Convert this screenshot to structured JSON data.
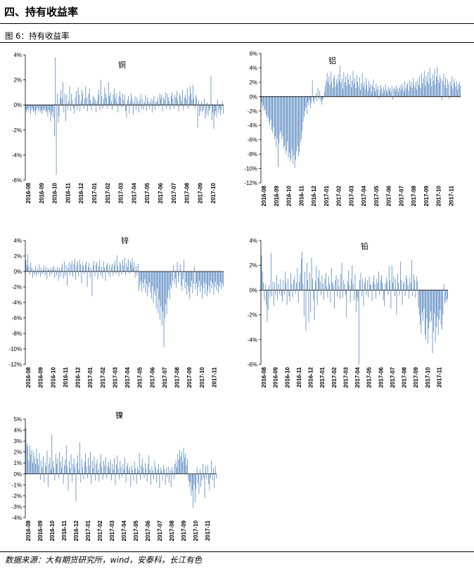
{
  "heading": "四、持有收益率",
  "figure_label": "图 6：持有收益率",
  "source": "数据来源：大有期货研究所，wind，安泰科，长江有色",
  "chart_data": [
    {
      "type": "bar",
      "title": "铜",
      "ylim": [
        -6,
        4
      ],
      "yticks": [
        -6,
        -4,
        -2,
        0,
        2,
        4
      ],
      "ytick_labels": [
        "-6%",
        "-4%",
        "-2%",
        "0%",
        "2%",
        "4%"
      ],
      "xtick_labels": [
        "2016-08",
        "2016-09",
        "2016-10",
        "2016-11",
        "2016-12",
        "2017-01",
        "2017-02",
        "2017-03",
        "2017-04",
        "2017-05",
        "2017-06",
        "2017-07",
        "2017-08",
        "2017-09",
        "2017-10"
      ],
      "color": "#4a7ebb",
      "values": [
        -0.4,
        -0.6,
        -0.3,
        -0.5,
        -0.2,
        -0.7,
        -0.4,
        -0.3,
        -0.6,
        -0.5,
        -0.8,
        -0.4,
        -0.2,
        -0.5,
        -0.3,
        -0.6,
        -0.4,
        -0.7,
        -0.5,
        -0.3,
        -0.4,
        -0.6,
        -0.5,
        -0.9,
        -0.4,
        -0.6,
        -1.3,
        -0.8,
        -0.5,
        -1.0,
        -2.5,
        3.8,
        -5.6,
        0.9,
        -1.4,
        -0.9,
        0.6,
        1.2,
        0.5,
        1.8,
        -0.6,
        0.9,
        -1.3,
        0.8,
        -0.4,
        0.3,
        1.5,
        -0.5,
        0.9,
        0.4,
        -0.3,
        -0.7,
        0.6,
        1.1,
        -0.4,
        1.4,
        0.8,
        -0.5,
        0.3,
        1.2,
        0.9,
        -0.3,
        0.5,
        1.5,
        0.6,
        -0.5,
        0.9,
        1.3,
        0.4,
        -0.4,
        0.2,
        0.7,
        0.6,
        0.4,
        -0.6,
        0.3,
        0.8,
        1.2,
        -0.4,
        2.0,
        0.7,
        -0.3,
        0.5,
        1.4,
        0.9,
        0.6,
        -0.3,
        1.8,
        0.7,
        1.0,
        0.3,
        -0.4,
        0.8,
        1.3,
        0.5,
        0.9,
        0.2,
        -0.6,
        0.7,
        1.1,
        0.6,
        -0.2,
        0.9,
        0.4,
        0.8,
        -0.5,
        -1.0,
        0.4,
        0.7,
        -0.7,
        0.3,
        0.9,
        0.5,
        -0.8,
        0.2,
        0.7,
        -0.4,
        0.6,
        0.3,
        -0.6,
        0.4,
        0.9,
        -0.3,
        0.5,
        -0.4,
        0.2,
        0.8,
        -0.5,
        0.6,
        0.3,
        -0.3,
        0.2,
        0.5,
        -0.6,
        0.4,
        0.7,
        -0.4,
        0.2,
        0.3,
        0.6,
        -0.2,
        0.9,
        0.5,
        0.8,
        -0.5,
        0.6,
        0.4,
        1.0,
        -0.3,
        0.9,
        0.6,
        0.3,
        -0.4,
        0.7,
        1.0,
        0.5,
        -0.3,
        0.8,
        0.6,
        1.1,
        0.4,
        -0.5,
        0.9,
        0.7,
        0.3,
        1.2,
        -0.4,
        0.6,
        0.8,
        0.5,
        1.3,
        -0.3,
        0.7,
        1.5,
        0.9,
        0.4,
        1.6,
        0.5,
        -0.3,
        0.8,
        0.6,
        -1.8,
        0.4,
        -0.9,
        -0.5,
        0.3,
        -0.6,
        -0.4,
        0.5,
        -1.1,
        -0.7,
        0.2,
        -0.9,
        -0.5,
        -0.3,
        2.3,
        -1.2,
        -0.6,
        -1.9,
        -0.8,
        -0.5,
        -1.0,
        0.4,
        -0.6,
        -0.3,
        -0.8,
        -0.4,
        0.3,
        -0.7
      ]
    },
    {
      "type": "bar",
      "title": "铝",
      "ylim": [
        -12,
        6
      ],
      "yticks": [
        -12,
        -10,
        -8,
        -6,
        -4,
        -2,
        0,
        2,
        4,
        6
      ],
      "ytick_labels": [
        "-12%",
        "-10%",
        "-8%",
        "-6%",
        "-4%",
        "-2%",
        "0%",
        "2%",
        "4%",
        "6%"
      ],
      "xtick_labels": [
        "2016-08",
        "2016-09",
        "2016-10",
        "2016-11",
        "2016-12",
        "2017-01",
        "2017-02",
        "2017-03",
        "2017-04",
        "2017-05",
        "2017-06",
        "2017-07",
        "2017-08",
        "2017-09",
        "2017-10",
        "2017-11"
      ],
      "color": "#4a7ebb",
      "values": [
        -0.8,
        -1.5,
        -1.2,
        -2.0,
        -1.8,
        -2.5,
        -3.0,
        -2.8,
        -3.5,
        -4.0,
        -3.2,
        -4.6,
        -5.0,
        -4.2,
        -6.0,
        -5.5,
        -7.0,
        -5.8,
        -9.8,
        -6.5,
        -5.2,
        -4.8,
        -6.0,
        -5.5,
        -7.2,
        -6.8,
        -8.0,
        -7.5,
        -6.2,
        -8.5,
        -7.8,
        -9.0,
        -8.6,
        -7.4,
        -9.4,
        -8.2,
        -9.9,
        -8.8,
        -7.6,
        -6.9,
        -8.3,
        -7.7,
        -6.4,
        -5.9,
        -4.8,
        -3.5,
        -2.8,
        -2.0,
        -1.5,
        -2.4,
        -0.8,
        -1.2,
        -0.5,
        -1.6,
        -0.9,
        2.3,
        -0.6,
        -1.0,
        -0.3,
        0.5,
        -0.7,
        1.2,
        -0.4,
        0.8,
        -0.6,
        -1.1,
        -0.5,
        -0.3,
        0.6,
        1.5,
        2.2,
        3.3,
        2.0,
        2.8,
        1.6,
        3.5,
        2.1,
        1.2,
        2.6,
        3.0,
        1.4,
        2.4,
        1.8,
        3.1,
        2.2,
        4.3,
        1.9,
        2.5,
        1.1,
        3.4,
        2.0,
        2.8,
        1.5,
        3.2,
        2.4,
        1.7,
        2.9,
        1.3,
        2.2,
        3.6,
        1.8,
        2.5,
        1.2,
        3.0,
        2.1,
        1.4,
        2.7,
        0.9,
        1.8,
        3.3,
        1.4,
        2.0,
        1.1,
        2.6,
        1.6,
        0.8,
        2.2,
        1.3,
        1.8,
        0.6,
        1.5,
        2.4,
        1.2,
        0.7,
        1.8,
        1.0,
        1.4,
        -0.3,
        0.9,
        1.6,
        1.1,
        0.5,
        1.3,
        0.8,
        1.7,
        1.0,
        0.6,
        1.4,
        0.9,
        1.2,
        0.7,
        1.5,
        -0.4,
        1.1,
        1.3,
        0.8,
        1.6,
        1.1,
        0.6,
        1.2,
        1.5,
        0.9,
        1.8,
        1.3,
        0.7,
        2.2,
        1.1,
        1.6,
        1.9,
        0.8,
        2.3,
        1.4,
        2.0,
        1.2,
        2.6,
        1.7,
        1.3,
        2.1,
        1.0,
        2.4,
        1.6,
        2.8,
        1.2,
        3.2,
        1.8,
        2.5,
        3.6,
        1.5,
        2.9,
        2.1,
        3.4,
        1.8,
        4.0,
        2.6,
        1.4,
        3.1,
        2.2,
        3.8,
        1.7,
        2.8,
        4.1,
        2.4,
        1.9,
        3.0,
        2.5,
        -0.5,
        2.2,
        3.2,
        1.6,
        2.7,
        1.2,
        2.4,
        1.8,
        -0.3,
        2.1,
        1.5,
        2.8,
        1.1,
        2.5,
        1.9,
        1.4,
        2.2,
        0.9,
        1.7,
        2.0,
        1.5
      ]
    },
    {
      "type": "bar",
      "title": "锌",
      "ylim": [
        -12,
        4
      ],
      "yticks": [
        -12,
        -10,
        -8,
        -6,
        -4,
        -2,
        0,
        2,
        4
      ],
      "ytick_labels": [
        "-12%",
        "-10%",
        "-8%",
        "-6%",
        "-4%",
        "-2%",
        "0%",
        "2%",
        "4%"
      ],
      "xtick_labels": [
        "2016-08",
        "2016-09",
        "2016-10",
        "2016-11",
        "2016-12",
        "2017-01",
        "2017-02",
        "2017-03",
        "2017-04",
        "2017-05",
        "2017-06",
        "2017-07",
        "2017-08",
        "2017-09",
        "2017-10",
        "2017-11"
      ],
      "color": "#4a7ebb",
      "values": [
        1.5,
        0.8,
        2.3,
        0.6,
        -0.4,
        1.1,
        0.5,
        -0.8,
        0.3,
        -0.5,
        0.7,
        -0.6,
        0.4,
        -0.3,
        0.9,
        -0.7,
        0.5,
        -0.4,
        0.3,
        0.8,
        -0.5,
        0.6,
        -0.9,
        0.4,
        0.2,
        -0.6,
        0.5,
        -0.3,
        0.4,
        0.7,
        -0.8,
        0.3,
        -0.5,
        0.6,
        -1.2,
        0.4,
        -0.7,
        0.5,
        1.0,
        -0.9,
        1.3,
        -0.6,
        0.8,
        -1.8,
        0.5,
        1.2,
        -0.5,
        0.9,
        1.4,
        -0.7,
        1.0,
        1.6,
        -1.1,
        0.8,
        1.3,
        -0.6,
        1.5,
        0.9,
        -1.5,
        1.2,
        0.7,
        -0.4,
        0.9,
        1.3,
        -2.0,
        0.6,
        1.1,
        -0.8,
        0.5,
        -3.2,
        0.8,
        1.4,
        -0.6,
        0.9,
        1.2,
        -1.0,
        0.7,
        1.5,
        -0.5,
        0.6,
        -0.8,
        1.3,
        0.5,
        -1.2,
        0.8,
        1.1,
        -0.4,
        0.9,
        -0.7,
        0.6,
        1.0,
        -0.5,
        0.8,
        1.4,
        -0.3,
        2.1,
        0.7,
        -0.6,
        1.2,
        0.9,
        -0.4,
        1.5,
        0.8,
        1.8,
        -0.5,
        1.1,
        0.6,
        1.6,
        -0.3,
        1.3,
        0.9,
        1.7,
        0.5,
        1.2,
        -0.8,
        0.7,
        -0.5,
        1.0,
        -2.5,
        -1.8,
        -1.2,
        -2.6,
        -1.5,
        -2.2,
        -1.0,
        -2.8,
        -1.6,
        -3.2,
        -2.0,
        -1.4,
        -2.7,
        -3.5,
        -1.9,
        -4.0,
        -2.5,
        -3.1,
        -4.8,
        -2.2,
        -5.4,
        -3.6,
        -6.2,
        -4.5,
        -7.0,
        -5.2,
        -9.8,
        -6.0,
        -4.2,
        -5.5,
        -3.4,
        -2.4,
        -3.6,
        -1.8,
        -2.2,
        -1.2,
        0.8,
        -1.6,
        -0.9,
        -2.1,
        1.2,
        -1.4,
        -0.6,
        0.9,
        -1.8,
        -2.5,
        -1.0,
        1.5,
        -2.2,
        -1.4,
        -3.0,
        -1.8,
        -2.6,
        -3.6,
        -2.0,
        -1.2,
        -2.8,
        -1.6,
        0.6,
        -2.3,
        -1.5,
        -3.2,
        -2.0,
        -1.2,
        -2.6,
        -1.8,
        -3.5,
        -2.2,
        -1.4,
        -2.9,
        -1.6,
        -3.2,
        -2.4,
        -1.8,
        -2.8,
        -1.2,
        -2.2,
        -1.5,
        -3.0,
        -2.0,
        -1.3,
        -2.5,
        -1.7,
        -2.8,
        -2.0,
        -1.4,
        -2.3,
        -1.6,
        -1.9
      ]
    },
    {
      "type": "bar",
      "title": "铅",
      "ylim": [
        -6,
        4
      ],
      "yticks": [
        -6,
        -4,
        -2,
        0,
        2,
        4
      ],
      "ytick_labels": [
        "-6%",
        "-4%",
        "-2%",
        "0%",
        "2%",
        "4%"
      ],
      "xtick_labels": [
        "2016-08",
        "2016-09",
        "2016-10",
        "2016-11",
        "2016-12",
        "2017-01",
        "2017-02",
        "2017-03",
        "2017-04",
        "2017-05",
        "2017-06",
        "2017-07",
        "2017-08",
        "2017-09",
        "2017-10",
        "2017-11"
      ],
      "color": "#4a7ebb",
      "values": [
        2.8,
        1.5,
        0.6,
        -0.8,
        0.5,
        -1.2,
        -2.6,
        -1.6,
        0.4,
        -0.6,
        3.0,
        -0.5,
        0.7,
        -1.3,
        0.6,
        -0.4,
        1.2,
        -0.8,
        0.5,
        -0.3,
        0.9,
        -0.5,
        -0.9,
        0.8,
        -0.4,
        1.5,
        0.6,
        -1.2,
        0.9,
        -0.5,
        -0.9,
        1.4,
        0.5,
        -0.6,
        0.8,
        1.1,
        -0.3,
        0.6,
        1.8,
        -1.0,
        0.7,
        1.3,
        2.5,
        3.1,
        0.5,
        -2.1,
        1.5,
        -3.3,
        2.2,
        0.8,
        -2.6,
        1.4,
        -1.8,
        2.6,
        0.9,
        -0.8,
        -2.4,
        0.7,
        1.9,
        -1.2,
        1.0,
        1.6,
        0.7,
        -0.4,
        1.2,
        0.5,
        -0.8,
        0.9,
        1.4,
        0.3,
        -0.6,
        1.1,
        0.5,
        -1.0,
        1.8,
        0.6,
        0.4,
        -1.5,
        0.8,
        1.2,
        -0.5,
        0.9,
        0.3,
        -0.7,
        1.3,
        2.2,
        -0.6,
        0.8,
        0.5,
        -0.4,
        -2.2,
        0.7,
        1.6,
        0.4,
        -1.0,
        0.9,
        2.0,
        0.5,
        -0.8,
        1.3,
        -1.8,
        -0.6,
        -0.9,
        -6.0,
        0.8,
        1.4,
        -0.5,
        0.9,
        -1.3,
        0.6,
        1.0,
        -0.4,
        0.8,
        -0.6,
        1.1,
        0.5,
        0.4,
        -0.9,
        0.7,
        1.2,
        0.5,
        -0.7,
        0.9,
        0.6,
        1.5,
        -0.4,
        0.8,
        1.2,
        0.6,
        -0.8,
        -1.3,
        0.5,
        1.0,
        0.7,
        -0.4,
        1.9,
        0.8,
        -1.5,
        2.0,
        0.6,
        1.1,
        -0.5,
        0.9,
        -2.0,
        1.3,
        0.6,
        -0.4,
        2.3,
        0.8,
        -1.2,
        0.5,
        0.7,
        -0.5,
        1.2,
        0.9,
        0.4,
        -0.7,
        1.0,
        0.6,
        2.4,
        -0.5,
        1.3,
        0.8,
        -0.6,
        1.1,
        0.7,
        -1.4,
        -2.0,
        -2.8,
        -3.5,
        -1.8,
        -2.5,
        -1.5,
        -3.6,
        -4.0,
        -2.3,
        -4.3,
        -3.1,
        -2.6,
        -1.7,
        -2.5,
        -5.1,
        -3.4,
        -1.9,
        -4.2,
        -3.0,
        -2.2,
        -3.6,
        -2.4,
        -1.6,
        -2.8,
        -3.2,
        -2.0,
        0.5,
        -1.1,
        -0.8,
        -1.0,
        -0.7
      ]
    },
    {
      "type": "bar",
      "title": "镍",
      "ylim": [
        -4,
        5
      ],
      "yticks": [
        -4,
        -3,
        -2,
        -1,
        0,
        1,
        2,
        3,
        4,
        5
      ],
      "ytick_labels": [
        "-4%",
        "-3%",
        "-2%",
        "-1%",
        "0%",
        "1%",
        "2%",
        "3%",
        "4%",
        "5%"
      ],
      "xtick_labels": [
        "2016-08",
        "2016-09",
        "2016-10",
        "2016-11",
        "2016-12",
        "2017-01",
        "2017-02",
        "2017-03",
        "2017-04",
        "2017-05",
        "2017-06",
        "2017-07",
        "2017-08",
        "2017-09",
        "2017-10",
        "2017-11"
      ],
      "color": "#4a7ebb",
      "values": [
        4.2,
        2.8,
        2.5,
        1.2,
        2.6,
        1.8,
        2.2,
        1.0,
        2.0,
        1.5,
        0.9,
        2.3,
        1.4,
        0.8,
        1.9,
        -0.5,
        1.2,
        0.6,
        1.6,
        -0.8,
        1.0,
        0.7,
        2.1,
        -1.2,
        0.9,
        1.5,
        0.4,
        3.6,
        1.2,
        0.6,
        -0.6,
        1.8,
        0.9,
        1.4,
        -0.4,
        2.0,
        1.1,
        0.5,
        1.6,
        -0.9,
        0.8,
        1.3,
        2.6,
        0.7,
        -1.5,
        1.2,
        0.5,
        1.8,
        -0.7,
        0.9,
        1.4,
        0.6,
        -2.5,
        1.0,
        1.7,
        0.4,
        2.9,
        -0.8,
        1.3,
        0.6,
        -0.5,
        1.1,
        1.9,
        0.7,
        -0.4,
        1.5,
        0.8,
        2.0,
        -0.9,
        1.2,
        0.5,
        1.6,
        -0.6,
        0.9,
        1.3,
        0.4,
        -0.7,
        1.0,
        1.8,
        0.6,
        -0.5,
        1.2,
        0.8,
        1.5,
        -0.4,
        0.7,
        1.1,
        0.5,
        1.3,
        -0.6,
        0.9,
        0.4,
        1.4,
        -1.0,
        0.8,
        1.7,
        0.5,
        -0.5,
        1.2,
        0.6,
        -0.3,
        0.9,
        0.4,
        1.5,
        -0.8,
        0.7,
        1.0,
        0.3,
        0.6,
        -1.2,
        0.8,
        0.4,
        -0.6,
        1.1,
        0.5,
        -0.9,
        0.7,
        0.3,
        1.9,
        -0.5,
        0.8,
        1.4,
        0.6,
        -0.4,
        1.0,
        0.5,
        -0.7,
        0.9,
        1.7,
        0.4,
        -1.0,
        0.7,
        0.3,
        -0.5,
        1.2,
        0.6,
        -0.8,
        0.4,
        0.9,
        -1.3,
        0.6,
        0.3,
        -0.6,
        0.8,
        0.4,
        -1.0,
        0.5,
        -0.3,
        0.7,
        -0.8,
        0.4,
        -1.2,
        0.6,
        0.3,
        -0.5,
        0.9,
        1.2,
        0.6,
        1.8,
        1.3,
        2.2,
        1.6,
        2.0,
        1.1,
        2.4,
        1.5,
        1.9,
        0.8,
        1.4,
        -0.6,
        -1.2,
        -0.8,
        -2.0,
        -1.5,
        -3.1,
        -1.0,
        -2.6,
        -1.4,
        0.6,
        -0.9,
        -1.8,
        0.4,
        -1.2,
        -0.6,
        0.9,
        -0.4,
        -2.2,
        0.7,
        -0.5,
        0.8,
        -0.9,
        -1.5,
        -0.4,
        1.2,
        -0.6,
        0.5,
        -1.3,
        0.7,
        -0.4
      ]
    }
  ]
}
